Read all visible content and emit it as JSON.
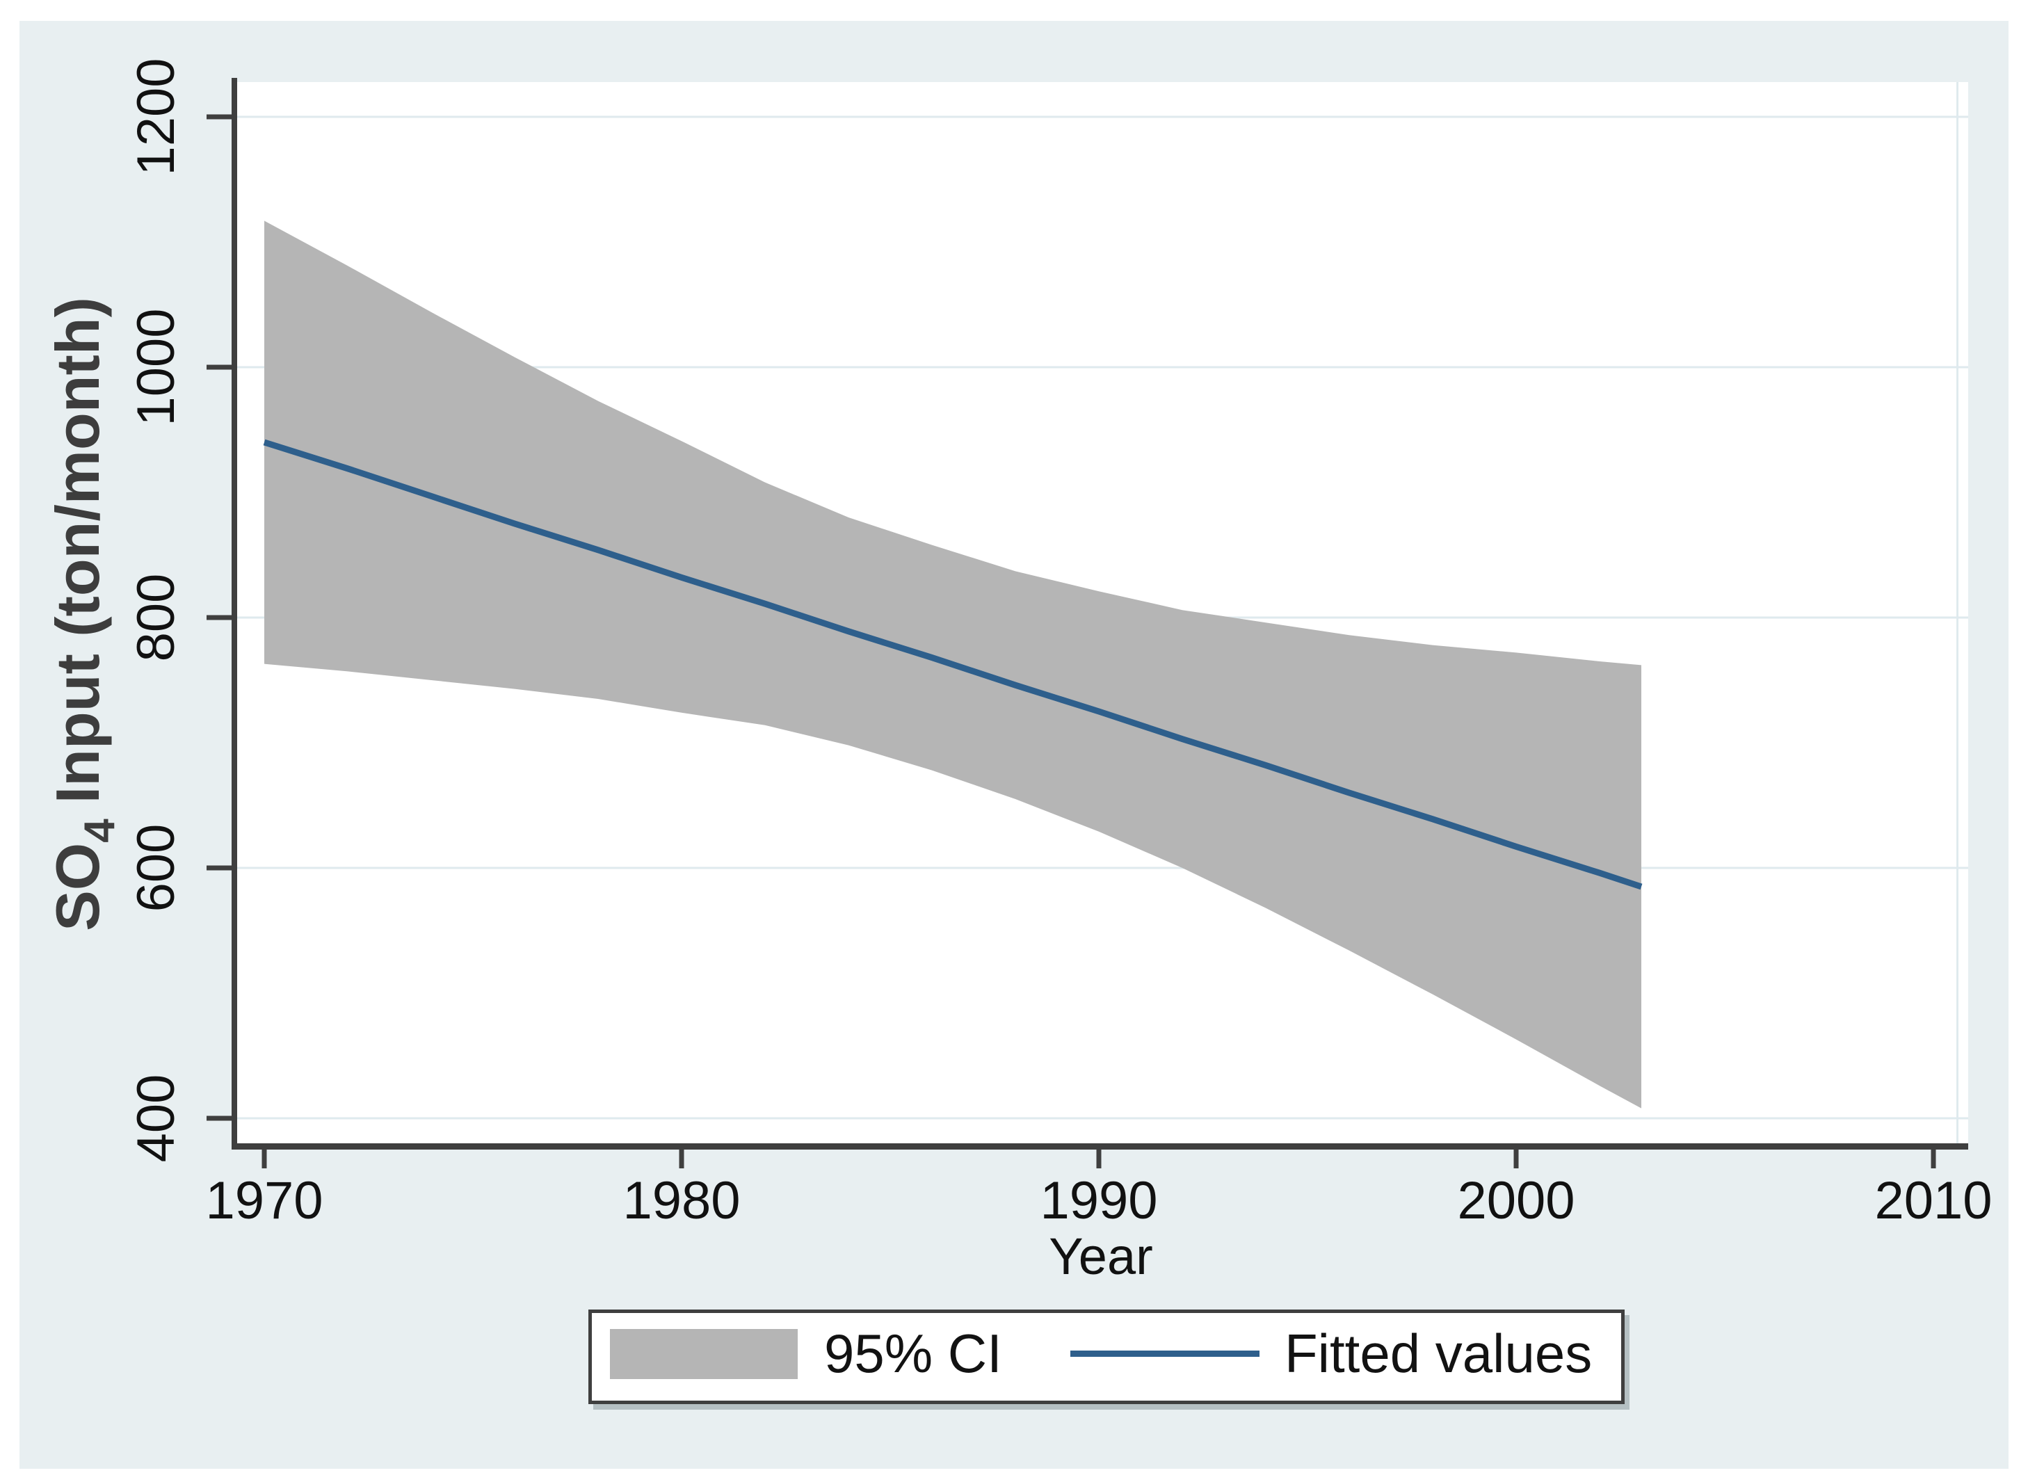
{
  "figure": {
    "outer_background": "#ffffff",
    "canvas_background": "#e8eff1",
    "plot_background": "#ffffff",
    "gridline_color": "#dfeaee",
    "axis_color": "#3f3f3f",
    "tick_label_color": "#111111",
    "axis_title_color": "#3d3d3d",
    "band_color": "#b5b5b5",
    "line_color": "#2e5f8c"
  },
  "chart_data": {
    "type": "line",
    "title": "",
    "xlabel": "Year",
    "ylabel_base": "SO",
    "ylabel_sub": "4",
    "ylabel_rest": "Input (ton/month)",
    "x_ticks": [
      1970,
      1980,
      1990,
      2000,
      2010
    ],
    "y_ticks": [
      400,
      600,
      800,
      1000,
      1200
    ],
    "xlim": [
      1969.3,
      2010.8
    ],
    "ylim": [
      375,
      1228
    ],
    "grid": "horizontal-only",
    "legend_position": "bottom-center",
    "x": [
      1970,
      1972,
      1974,
      1976,
      1978,
      1980,
      1982,
      1984,
      1986,
      1988,
      1990,
      1992,
      1994,
      1996,
      1998,
      2000,
      2002,
      2003
    ],
    "series": [
      {
        "name": "Fitted values",
        "type": "line",
        "values": [
          940,
          919,
          897,
          875,
          854,
          832,
          811,
          789,
          768,
          746,
          725,
          703,
          682,
          660,
          639,
          617,
          596,
          585
        ]
      },
      {
        "name": "95% CI",
        "type": "confidence-band",
        "upper": [
          1117,
          1081,
          1044,
          1008,
          973,
          941,
          908,
          880,
          858,
          837,
          821,
          806,
          796,
          786,
          778,
          772,
          765,
          762
        ],
        "lower": [
          763,
          757,
          750,
          743,
          735,
          724,
          714,
          698,
          678,
          655,
          629,
          600,
          568,
          534,
          499,
          463,
          426,
          408
        ]
      }
    ]
  },
  "legend": {
    "items": [
      {
        "label": "95% CI",
        "marker": "band-swatch"
      },
      {
        "label": "Fitted values",
        "marker": "line-sample"
      }
    ]
  }
}
